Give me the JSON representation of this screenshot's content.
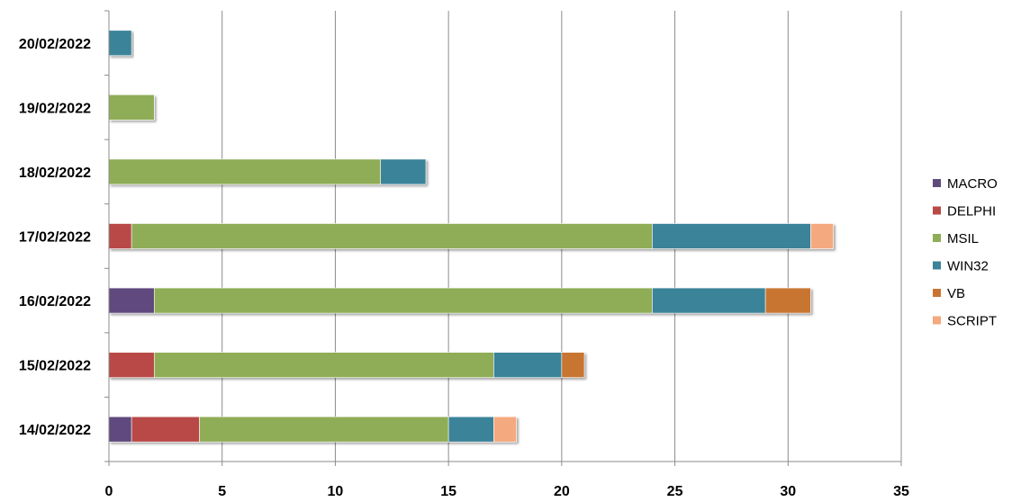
{
  "chart_data": {
    "type": "bar",
    "orientation": "horizontal",
    "stacked": true,
    "title": "",
    "xlabel": "",
    "ylabel": "",
    "xlim": [
      0,
      35
    ],
    "x_ticks": [
      0,
      5,
      10,
      15,
      20,
      25,
      30,
      35
    ],
    "grid": "vertical",
    "legend_position": "right",
    "categories": [
      "14/02/2022",
      "15/02/2022",
      "16/02/2022",
      "17/02/2022",
      "18/02/2022",
      "19/02/2022",
      "20/02/2022"
    ],
    "series": [
      {
        "name": "MACRO",
        "color": "#5f4a7e",
        "values": [
          1,
          0,
          2,
          0,
          0,
          0,
          0
        ]
      },
      {
        "name": "DELPHI",
        "color": "#b84a47",
        "values": [
          3,
          2,
          0,
          1,
          0,
          0,
          0
        ]
      },
      {
        "name": "MSIL",
        "color": "#8fad56",
        "values": [
          11,
          15,
          22,
          23,
          12,
          2,
          0
        ]
      },
      {
        "name": "WIN32",
        "color": "#3b8399",
        "values": [
          2,
          3,
          5,
          7,
          2,
          0,
          1
        ]
      },
      {
        "name": "VB",
        "color": "#c87533",
        "values": [
          0,
          1,
          2,
          0,
          0,
          0,
          0
        ]
      },
      {
        "name": "SCRIPT",
        "color": "#f5a97e",
        "values": [
          1,
          0,
          0,
          1,
          0,
          0,
          0
        ]
      }
    ]
  }
}
